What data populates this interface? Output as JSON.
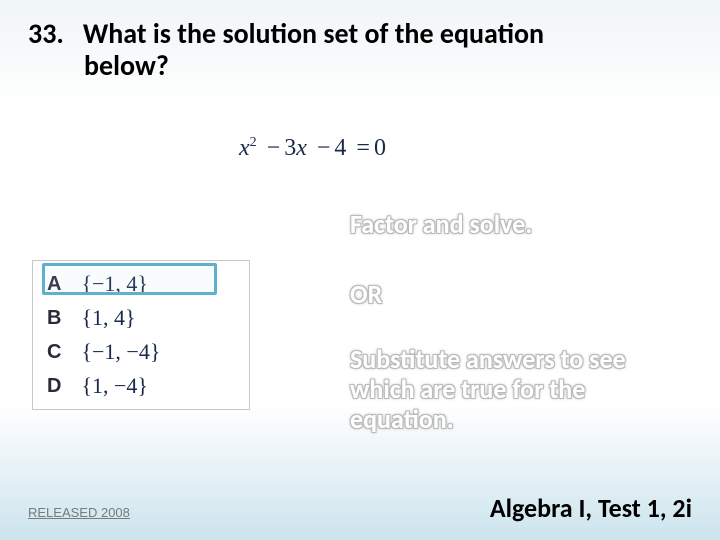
{
  "question": {
    "number": "33.",
    "line1": "What is the solution set of the equation",
    "line2": "below?"
  },
  "equation": {
    "latex": "x² − 3x − 4 = 0",
    "parts": {
      "var": "x",
      "sq": "2",
      "b": "3",
      "c": "4",
      "rhs": "0"
    }
  },
  "answers": {
    "rows": [
      {
        "label": "A",
        "set": "{−1, 4}"
      },
      {
        "label": "B",
        "set": "{1, 4}"
      },
      {
        "label": "C",
        "set": "{−1, −4}"
      },
      {
        "label": "D",
        "set": "{1, −4}"
      }
    ],
    "correct_index": 0,
    "highlight_color": "#5fb0cf"
  },
  "hints": {
    "h1": "Factor and solve.",
    "h2": "OR",
    "h3": "Substitute answers to see which are true for the equation."
  },
  "footer": {
    "left": "RELEASED 2008",
    "right": "Algebra I, Test 1, 2i"
  },
  "style": {
    "bg_gradient_top": "#f0f5f7",
    "bg_gradient_bottom": "#cce4ed",
    "question_fontsize": 28,
    "hint_fontsize": 26,
    "hint_color": "#ffffff",
    "footer_left_fontsize": 13,
    "footer_right_fontsize": 26
  }
}
